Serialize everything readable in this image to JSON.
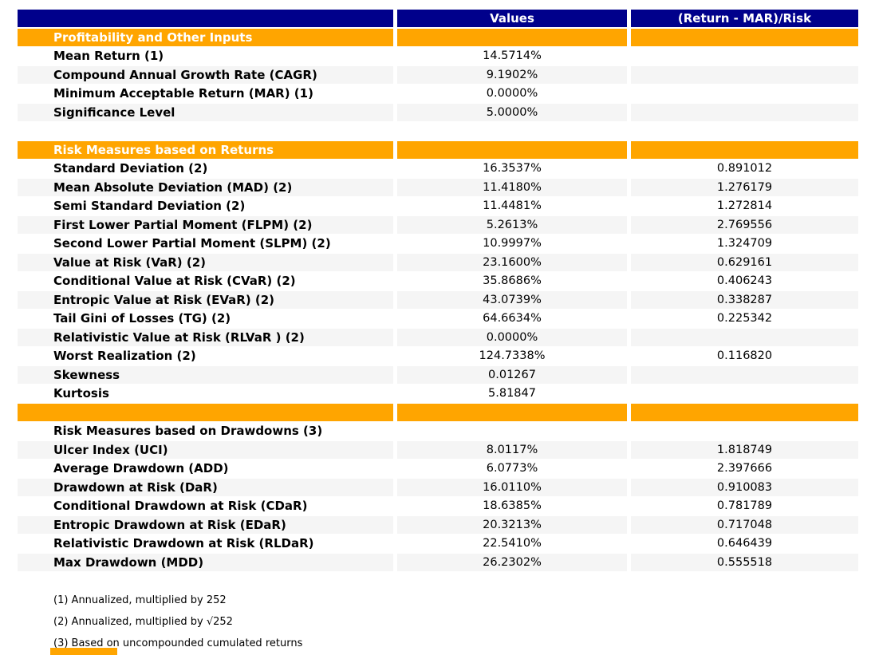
{
  "chart_data": {
    "type": "table",
    "columns": [
      "",
      "Values",
      "(Return - MAR)/Risk"
    ],
    "rows": [
      {
        "kind": "section",
        "label": "Profitability and Other Inputs",
        "value": "",
        "ratio": ""
      },
      {
        "kind": "data",
        "label": "Mean Return (1)",
        "value": "14.5714%",
        "ratio": ""
      },
      {
        "kind": "data",
        "label": "Compound Annual Growth Rate (CAGR)",
        "value": "9.1902%",
        "ratio": ""
      },
      {
        "kind": "data",
        "label": "Minimum Acceptable Return (MAR) (1)",
        "value": "0.0000%",
        "ratio": ""
      },
      {
        "kind": "data",
        "label": "Significance Level",
        "value": "5.0000%",
        "ratio": ""
      },
      {
        "kind": "data",
        "label": "",
        "value": "",
        "ratio": ""
      },
      {
        "kind": "section",
        "label": "Risk Measures based on Returns",
        "value": "",
        "ratio": ""
      },
      {
        "kind": "data",
        "label": "Standard Deviation (2)",
        "value": "16.3537%",
        "ratio": "0.891012"
      },
      {
        "kind": "data",
        "label": "Mean Absolute Deviation (MAD) (2)",
        "value": "11.4180%",
        "ratio": "1.276179"
      },
      {
        "kind": "data",
        "label": "Semi Standard Deviation (2)",
        "value": "11.4481%",
        "ratio": "1.272814"
      },
      {
        "kind": "data",
        "label": "First Lower Partial Moment (FLPM) (2)",
        "value": "5.2613%",
        "ratio": "2.769556"
      },
      {
        "kind": "data",
        "label": "Second Lower Partial Moment (SLPM) (2)",
        "value": "10.9997%",
        "ratio": "1.324709"
      },
      {
        "kind": "data",
        "label": "Value at Risk (VaR) (2)",
        "value": "23.1600%",
        "ratio": "0.629161"
      },
      {
        "kind": "data",
        "label": "Conditional Value at Risk (CVaR) (2)",
        "value": "35.8686%",
        "ratio": "0.406243"
      },
      {
        "kind": "data",
        "label": "Entropic Value at Risk (EVaR) (2)",
        "value": "43.0739%",
        "ratio": "0.338287"
      },
      {
        "kind": "data",
        "label": "Tail Gini of Losses (TG) (2)",
        "value": "64.6634%",
        "ratio": "0.225342"
      },
      {
        "kind": "data",
        "label": "Relativistic Value at Risk (RLVaR ) (2)",
        "value": "0.0000%",
        "ratio": ""
      },
      {
        "kind": "data",
        "label": "Worst Realization (2)",
        "value": "124.7338%",
        "ratio": "0.116820"
      },
      {
        "kind": "data",
        "label": "Skewness",
        "value": "0.01267",
        "ratio": ""
      },
      {
        "kind": "data",
        "label": "Kurtosis",
        "value": "5.81847",
        "ratio": ""
      },
      {
        "kind": "section",
        "label": "",
        "value": "",
        "ratio": ""
      },
      {
        "kind": "data",
        "label": "Risk Measures based on Drawdowns (3)",
        "value": "",
        "ratio": ""
      },
      {
        "kind": "data",
        "label": "Ulcer Index (UCI)",
        "value": "8.0117%",
        "ratio": "1.818749"
      },
      {
        "kind": "data",
        "label": "Average Drawdown (ADD)",
        "value": "6.0773%",
        "ratio": "2.397666"
      },
      {
        "kind": "data",
        "label": "Drawdown at Risk (DaR)",
        "value": "16.0110%",
        "ratio": "0.910083"
      },
      {
        "kind": "data",
        "label": "Conditional Drawdown at Risk (CDaR)",
        "value": "18.6385%",
        "ratio": "0.781789"
      },
      {
        "kind": "data",
        "label": "Entropic Drawdown at Risk (EDaR)",
        "value": "20.3213%",
        "ratio": "0.717048"
      },
      {
        "kind": "data",
        "label": "Relativistic Drawdown at Risk (RLDaR)",
        "value": "22.5410%",
        "ratio": "0.646439"
      },
      {
        "kind": "data",
        "label": "Max Drawdown (MDD)",
        "value": "26.2302%",
        "ratio": "0.555518"
      }
    ]
  },
  "footnotes": [
    "(1) Annualized, multiplied by 252",
    "(2) Annualized, multiplied by √252",
    "(3) Based on uncompounded cumulated returns"
  ],
  "colors": {
    "header_bg": "#00008B",
    "section_bg": "#FFA500",
    "stripe_bg": "#F5F5F5",
    "header_text": "#FFFFFF",
    "body_text": "#000000"
  }
}
